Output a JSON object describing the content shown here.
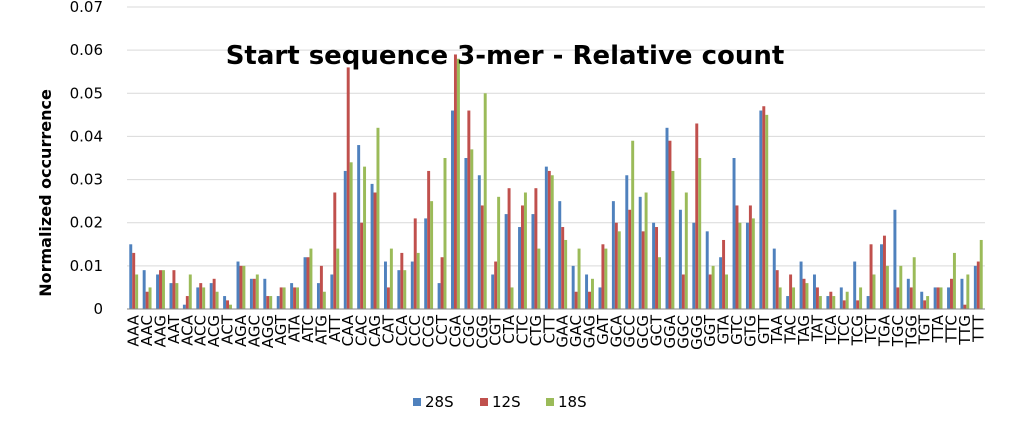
{
  "chart_data": {
    "type": "bar",
    "title": "Start sequence 3-mer - Relative count",
    "ylabel": "Normalized occurrence",
    "xlabel": "",
    "ylim": [
      0,
      0.07
    ],
    "yticks": [
      "0",
      "0.01",
      "0.02",
      "0.03",
      "0.04",
      "0.05",
      "0.06",
      "0.07"
    ],
    "ytick_values": [
      0,
      0.01,
      0.02,
      0.03,
      0.04,
      0.05,
      0.06,
      0.07
    ],
    "grid": true,
    "legend_position": "bottom",
    "categories": [
      "AAA",
      "AAC",
      "AAG",
      "AAT",
      "ACA",
      "ACC",
      "ACG",
      "ACT",
      "AGA",
      "AGC",
      "AGG",
      "AGT",
      "ATA",
      "ATC",
      "ATG",
      "ATT",
      "CAA",
      "CAC",
      "CAG",
      "CAT",
      "CCA",
      "CCC",
      "CCG",
      "CCT",
      "CGA",
      "CGC",
      "CGG",
      "CGT",
      "CTA",
      "CTC",
      "CTG",
      "CTT",
      "GAA",
      "GAC",
      "GAG",
      "GAT",
      "GCA",
      "GCC",
      "GCG",
      "GCT",
      "GGA",
      "GGC",
      "GGG",
      "GGT",
      "GTA",
      "GTC",
      "GTG",
      "GTT",
      "TAA",
      "TAC",
      "TAG",
      "TAT",
      "TCA",
      "TCC",
      "TCG",
      "TCT",
      "TGA",
      "TGC",
      "TGG",
      "TGT",
      "TTA",
      "TTC",
      "TTG",
      "TTT"
    ],
    "series": [
      {
        "name": "28S",
        "color": "#4F81BD",
        "values": [
          0.015,
          0.009,
          0.008,
          0.006,
          0.001,
          0.005,
          0.006,
          0.003,
          0.011,
          0.007,
          0.007,
          0.003,
          0.006,
          0.012,
          0.006,
          0.008,
          0.032,
          0.038,
          0.029,
          0.011,
          0.009,
          0.011,
          0.021,
          0.006,
          0.046,
          0.035,
          0.031,
          0.008,
          0.022,
          0.019,
          0.022,
          0.033,
          0.025,
          0.01,
          0.008,
          0.005,
          0.025,
          0.031,
          0.026,
          0.02,
          0.042,
          0.023,
          0.02,
          0.018,
          0.012,
          0.035,
          0.02,
          0.046,
          0.014,
          0.003,
          0.011,
          0.008,
          0.003,
          0.005,
          0.011,
          0.003,
          0.015,
          0.023,
          0.007,
          0.004,
          0.005,
          0.005,
          0.007,
          0.01
        ]
      },
      {
        "name": "12S",
        "color": "#C0504D",
        "values": [
          0.013,
          0.004,
          0.009,
          0.009,
          0.003,
          0.006,
          0.007,
          0.002,
          0.01,
          0.007,
          0.003,
          0.005,
          0.005,
          0.012,
          0.01,
          0.027,
          0.056,
          0.02,
          0.027,
          0.005,
          0.013,
          0.021,
          0.032,
          0.012,
          0.059,
          0.046,
          0.024,
          0.011,
          0.028,
          0.024,
          0.028,
          0.032,
          0.019,
          0.004,
          0.004,
          0.015,
          0.02,
          0.023,
          0.018,
          0.019,
          0.039,
          0.008,
          0.043,
          0.008,
          0.016,
          0.024,
          0.024,
          0.047,
          0.009,
          0.008,
          0.007,
          0.005,
          0.004,
          0.002,
          0.002,
          0.015,
          0.017,
          0.005,
          0.005,
          0.002,
          0.005,
          0.007,
          0.001,
          0.011
        ]
      },
      {
        "name": "18S",
        "color": "#9BBB59",
        "values": [
          0.008,
          0.005,
          0.009,
          0.006,
          0.008,
          0.005,
          0.004,
          0.001,
          0.01,
          0.008,
          0.003,
          0.005,
          0.005,
          0.014,
          0.004,
          0.014,
          0.034,
          0.033,
          0.042,
          0.014,
          0.009,
          0.013,
          0.025,
          0.035,
          0.058,
          0.037,
          0.05,
          0.026,
          0.005,
          0.027,
          0.014,
          0.031,
          0.016,
          0.014,
          0.007,
          0.014,
          0.018,
          0.039,
          0.027,
          0.012,
          0.032,
          0.027,
          0.035,
          0.01,
          0.008,
          0.02,
          0.021,
          0.045,
          0.005,
          0.005,
          0.006,
          0.003,
          0.003,
          0.004,
          0.005,
          0.008,
          0.01,
          0.01,
          0.012,
          0.003,
          0.005,
          0.013,
          0.008,
          0.016
        ]
      }
    ]
  }
}
